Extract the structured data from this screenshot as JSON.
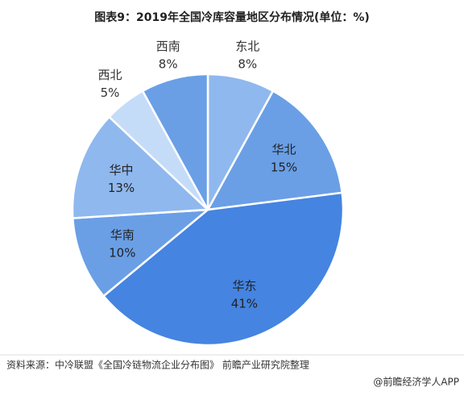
{
  "chart_data": {
    "type": "pie",
    "title": "图表9：2019年全国冷库容量地区分布情况(单位：%)",
    "categories": [
      "东北",
      "华北",
      "华东",
      "华南",
      "华中",
      "西北",
      "西南"
    ],
    "values": [
      8,
      15,
      41,
      10,
      13,
      5,
      8
    ],
    "value_labels": [
      "8%",
      "15%",
      "41%",
      "10%",
      "13%",
      "5%",
      "8%"
    ],
    "colors": [
      "#8fb8ee",
      "#6a9fe6",
      "#4584e0",
      "#6a9fe6",
      "#8fb8ee",
      "#c5dcf8",
      "#6a9fe6"
    ],
    "source": "资料来源：中冷联盟《全国冷链物流企业分布图》 前瞻产业研究院整理",
    "credit": "@前瞻经济学人APP"
  }
}
